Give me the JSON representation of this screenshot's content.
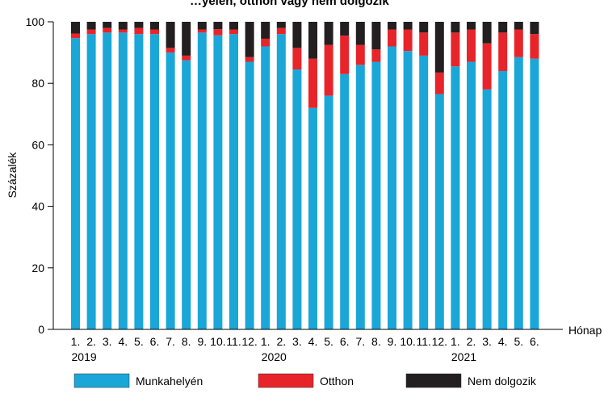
{
  "chart_data": {
    "type": "bar",
    "stacked": true,
    "title_partial": "…yelén, otthon vagy nem dolgozik",
    "ylabel": "Százalék",
    "xlabel": "Hónap",
    "ylim": [
      0,
      100
    ],
    "yticks": [
      0,
      20,
      40,
      60,
      80,
      100
    ],
    "categories": [
      "1.",
      "2.",
      "3.",
      "4.",
      "5.",
      "6.",
      "7.",
      "8.",
      "9.",
      "10.",
      "11.",
      "12.",
      "1.",
      "2.",
      "3.",
      "4.",
      "5.",
      "6.",
      "7.",
      "8.",
      "9.",
      "10.",
      "11.",
      "12.",
      "1.",
      "2.",
      "3.",
      "4.",
      "5.",
      "6."
    ],
    "year_labels": [
      {
        "label": "2019",
        "index": 0
      },
      {
        "label": "2020",
        "index": 12
      },
      {
        "label": "2021",
        "index": 24
      }
    ],
    "series": [
      {
        "name": "Munkahelyén",
        "color": "#1ba6d8",
        "values": [
          94.7,
          96,
          96.5,
          96.5,
          96,
          96,
          90,
          87.5,
          96.5,
          95.6,
          96,
          87,
          92,
          96,
          84.5,
          72,
          76,
          83,
          86,
          87,
          92,
          90.5,
          89,
          76.5,
          85.5,
          87,
          78,
          84,
          88.5,
          88
        ]
      },
      {
        "name": "Otthon",
        "color": "#e8242b",
        "values": [
          1.5,
          1.5,
          1.5,
          1,
          2,
          1.5,
          1.5,
          1.5,
          1,
          2,
          1.5,
          1.5,
          2.5,
          2,
          7,
          16,
          16.5,
          12.5,
          6.5,
          4,
          5.5,
          7,
          7.5,
          7,
          11,
          10.5,
          15,
          12.5,
          9,
          8
        ]
      },
      {
        "name": "Nem dolgozik",
        "color": "#231f20",
        "values": [
          3.8,
          2.5,
          2,
          2.5,
          2,
          2.5,
          8.5,
          11,
          2.5,
          2.4,
          2.5,
          11.5,
          5.5,
          2,
          8.5,
          12,
          7.5,
          4.5,
          7.5,
          9,
          2.5,
          2.5,
          3.5,
          16.5,
          3.5,
          2.5,
          7,
          3.5,
          2.5,
          4
        ]
      }
    ],
    "legend_position": "bottom",
    "grid": false
  }
}
